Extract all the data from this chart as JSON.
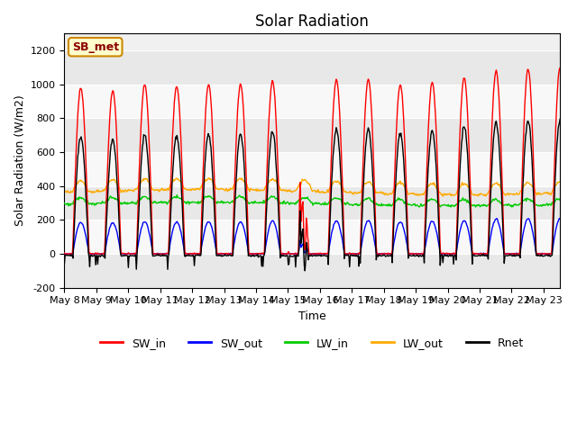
{
  "title": "Solar Radiation",
  "xlabel": "Time",
  "ylabel": "Solar Radiation (W/m2)",
  "ylim": [
    -200,
    1300
  ],
  "yticks": [
    -200,
    0,
    200,
    400,
    600,
    800,
    1000,
    1200
  ],
  "background_color": "#ffffff",
  "plot_bg_color": "#f0f0f0",
  "title_fontsize": 12,
  "label_fontsize": 9,
  "legend_fontsize": 9,
  "tick_fontsize": 8,
  "colors": {
    "SW_in": "#ff0000",
    "SW_out": "#0000ff",
    "LW_in": "#00cc00",
    "LW_out": "#ffaa00",
    "Rnet": "#000000"
  },
  "annotation_text": "SB_met",
  "annotation_color": "#8b0000",
  "annotation_bg": "#ffffcc",
  "annotation_border": "#cc8800",
  "band_colors": [
    "#e8e8e8",
    "#f8f8f8"
  ],
  "n_days": 16,
  "start_day": 8
}
